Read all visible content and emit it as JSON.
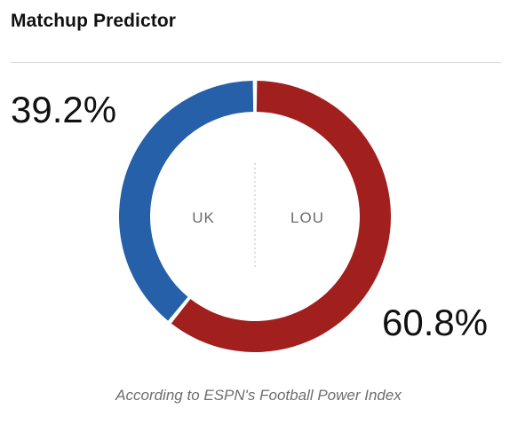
{
  "widget": {
    "title": "Matchup Predictor",
    "footnote": "According to ESPN's Football Power Index"
  },
  "chart_data": {
    "type": "pie",
    "variant": "donut",
    "title": "Matchup Predictor",
    "slices": [
      {
        "label": "UK",
        "value": 39.2,
        "value_label": "39.2%",
        "color": "#2560a8"
      },
      {
        "label": "LOU",
        "value": 60.8,
        "value_label": "60.8%",
        "color": "#a11f1d"
      }
    ]
  }
}
